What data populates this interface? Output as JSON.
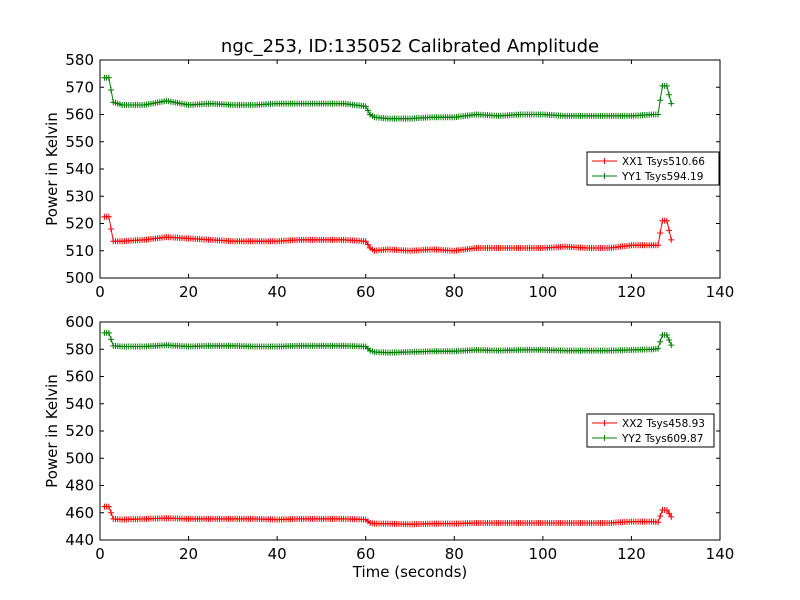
{
  "chart_data": [
    {
      "type": "line",
      "title": "ngc_253, ID:135052 Calibrated Amplitude",
      "xlabel": "",
      "ylabel": "Power in Kelvin",
      "xlim": [
        0,
        140
      ],
      "ylim": [
        500,
        580
      ],
      "xticks": [
        "0",
        "20",
        "40",
        "60",
        "80",
        "100",
        "120",
        "140"
      ],
      "yticks": [
        "500",
        "510",
        "520",
        "530",
        "540",
        "550",
        "560",
        "570",
        "580"
      ],
      "legend_position": "right",
      "marker": "+",
      "series": [
        {
          "name": "XX1 Tsys510.66",
          "color": "#ff0000",
          "x": [
            1,
            2,
            3,
            5,
            10,
            15,
            20,
            25,
            30,
            35,
            40,
            45,
            50,
            55,
            60,
            61,
            62,
            65,
            70,
            75,
            80,
            85,
            90,
            95,
            100,
            105,
            110,
            115,
            120,
            125,
            126,
            127,
            128,
            129
          ],
          "y": [
            522.5,
            522.5,
            513.5,
            513.5,
            514,
            515,
            514.5,
            514,
            513.5,
            513.5,
            513.5,
            514,
            514,
            514,
            513.5,
            511,
            510,
            510.5,
            510,
            510.5,
            510,
            511,
            511,
            511,
            511,
            511.5,
            511,
            511,
            512,
            512,
            512,
            521,
            521,
            514
          ]
        },
        {
          "name": "YY1 Tsys594.19",
          "color": "#008000",
          "x": [
            1,
            2,
            3,
            5,
            10,
            15,
            20,
            25,
            30,
            35,
            40,
            45,
            50,
            55,
            60,
            61,
            62,
            65,
            70,
            75,
            80,
            85,
            90,
            95,
            100,
            105,
            110,
            115,
            120,
            125,
            126,
            127,
            128,
            129
          ],
          "y": [
            573.5,
            573.5,
            564.5,
            563.5,
            563.5,
            565,
            563.5,
            564,
            563.5,
            563.5,
            564,
            564,
            564,
            564,
            563,
            560,
            559,
            558.5,
            558.5,
            559,
            559,
            560,
            559.5,
            560,
            560,
            559.5,
            559.5,
            559.5,
            559.5,
            560,
            560,
            570.5,
            570.5,
            564
          ]
        }
      ]
    },
    {
      "type": "line",
      "title": "",
      "xlabel": "Time (seconds)",
      "ylabel": "Power in Kelvin",
      "xlim": [
        0,
        140
      ],
      "ylim": [
        440,
        600
      ],
      "xticks": [
        "0",
        "20",
        "40",
        "60",
        "80",
        "100",
        "120",
        "140"
      ],
      "yticks": [
        "440",
        "460",
        "480",
        "500",
        "520",
        "540",
        "560",
        "580",
        "600"
      ],
      "legend_position": "right",
      "marker": "+",
      "series": [
        {
          "name": "XX2 Tsys458.93",
          "color": "#ff0000",
          "x": [
            1,
            2,
            3,
            5,
            10,
            15,
            20,
            25,
            30,
            35,
            40,
            45,
            50,
            55,
            60,
            61,
            62,
            65,
            70,
            75,
            80,
            85,
            90,
            95,
            100,
            105,
            110,
            115,
            120,
            125,
            126,
            127,
            128,
            129
          ],
          "y": [
            464.5,
            464.5,
            455.5,
            455,
            455.5,
            456,
            455.5,
            455.5,
            455.5,
            455.5,
            455,
            455.5,
            455.5,
            455.5,
            455,
            452.5,
            452,
            452,
            451.5,
            452,
            452,
            452.5,
            452.5,
            452.5,
            452.5,
            452.5,
            452.5,
            452.5,
            453.5,
            453.5,
            453,
            462,
            462,
            457
          ]
        },
        {
          "name": "YY2 Tsys609.87",
          "color": "#008000",
          "x": [
            1,
            2,
            3,
            5,
            10,
            15,
            20,
            25,
            30,
            35,
            40,
            45,
            50,
            55,
            60,
            61,
            62,
            65,
            70,
            75,
            80,
            85,
            90,
            95,
            100,
            105,
            110,
            115,
            120,
            125,
            126,
            127,
            128,
            129
          ],
          "y": [
            592,
            592,
            582.5,
            582,
            582,
            583,
            582,
            582.5,
            582.5,
            582,
            582,
            582.5,
            582.5,
            582.5,
            582,
            579,
            578,
            577.5,
            578,
            578.5,
            578.5,
            579.5,
            579,
            579.5,
            579.5,
            579,
            579,
            579,
            579.5,
            580,
            580.5,
            590.5,
            590.5,
            583
          ]
        }
      ]
    }
  ]
}
